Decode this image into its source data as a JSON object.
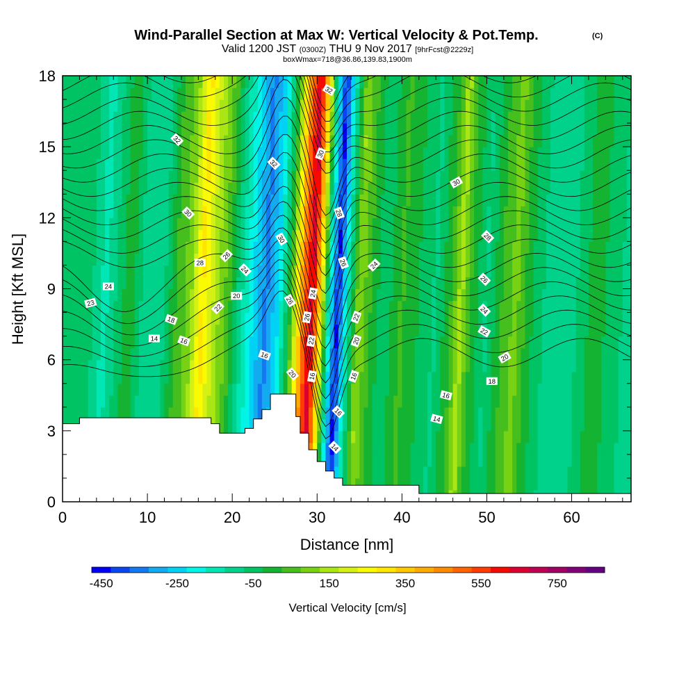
{
  "header": {
    "title": "Wind-Parallel Section at Max W: Vertical Velocity & Pot.Temp.",
    "copyright": "(C)",
    "subtitle_valid": "Valid 1200 JST",
    "subtitle_utc": "(0300Z)",
    "subtitle_date": "THU 9 Nov 2017",
    "subtitle_fcst": "[9hrFcst@2229z]",
    "subtitle_box": "boxWmax=718@36.86,139.83,1900m"
  },
  "chart_data": {
    "type": "heatmap",
    "xlabel": "Distance [nm]",
    "ylabel": "Height [Kft MSL]",
    "xlim": [
      0,
      67
    ],
    "ylim": [
      0,
      18
    ],
    "x_ticks": [
      0,
      10,
      20,
      30,
      40,
      50,
      60
    ],
    "y_ticks": [
      0,
      3,
      6,
      9,
      12,
      15,
      18
    ],
    "colorbar": {
      "label": "Vertical Velocity [cm/s]",
      "min": -450,
      "step": 50,
      "tick_labels": [
        "-450",
        "-250",
        "-50",
        "150",
        "350",
        "550",
        "750"
      ],
      "colors": [
        "#0000f5",
        "#0a46f0",
        "#1478f0",
        "#14aaf0",
        "#00d2f5",
        "#00f5e6",
        "#00e6b4",
        "#00d28c",
        "#00c364",
        "#14b432",
        "#46be1e",
        "#78d214",
        "#aae614",
        "#d7f014",
        "#fafa00",
        "#ffe600",
        "#ffc800",
        "#ffaa00",
        "#ff8c00",
        "#ff6400",
        "#ff3c00",
        "#f50a00",
        "#dc0032",
        "#be0050",
        "#a00064",
        "#820078",
        "#640082"
      ]
    },
    "w_field_columns": [
      {
        "x": 0,
        "w": -50
      },
      {
        "x": 3,
        "w": -20
      },
      {
        "x": 5,
        "w": -120
      },
      {
        "x": 8,
        "w": 40
      },
      {
        "x": 10,
        "w": -100
      },
      {
        "x": 12,
        "w": -60
      },
      {
        "x": 13.5,
        "w": 60
      },
      {
        "x": 15,
        "w": 120
      },
      {
        "x": 16.5,
        "w": 320
      },
      {
        "x": 18,
        "w": 180
      },
      {
        "x": 19.5,
        "w": 80
      },
      {
        "x": 21,
        "w": -80
      },
      {
        "x": 22.5,
        "w": -200
      },
      {
        "x": 24,
        "w": -320
      },
      {
        "x": 25.5,
        "w": -200
      },
      {
        "x": 27,
        "w": 60
      },
      {
        "x": 28.5,
        "w": 500
      },
      {
        "x": 29.5,
        "w": 700
      },
      {
        "x": 30.5,
        "w": 300
      },
      {
        "x": 31.5,
        "w": -150
      },
      {
        "x": 32.5,
        "w": -420
      },
      {
        "x": 33.5,
        "w": -150
      },
      {
        "x": 35,
        "w": 150
      },
      {
        "x": 36.5,
        "w": 40
      },
      {
        "x": 38,
        "w": -40
      },
      {
        "x": 40,
        "w": 60
      },
      {
        "x": 42,
        "w": 0
      },
      {
        "x": 44,
        "w": -60
      },
      {
        "x": 46,
        "w": 60
      },
      {
        "x": 47,
        "w": 180
      },
      {
        "x": 48,
        "w": 60
      },
      {
        "x": 50,
        "w": -60
      },
      {
        "x": 52,
        "w": 60
      },
      {
        "x": 53.5,
        "w": 120
      },
      {
        "x": 55,
        "w": 20
      },
      {
        "x": 57,
        "w": -60
      },
      {
        "x": 59,
        "w": -100
      },
      {
        "x": 61,
        "w": -40
      },
      {
        "x": 63,
        "w": 40
      },
      {
        "x": 65,
        "w": -40
      },
      {
        "x": 67,
        "w": -60
      }
    ],
    "terrain": [
      [
        0,
        3.3
      ],
      [
        2,
        3.3
      ],
      [
        2,
        3.55
      ],
      [
        17.5,
        3.55
      ],
      [
        17.5,
        3.3
      ],
      [
        18.5,
        3.3
      ],
      [
        18.5,
        2.9
      ],
      [
        21.5,
        2.9
      ],
      [
        21.5,
        3.1
      ],
      [
        22.5,
        3.1
      ],
      [
        22.5,
        3.5
      ],
      [
        23.5,
        3.5
      ],
      [
        23.5,
        3.9
      ],
      [
        24.5,
        3.9
      ],
      [
        24.5,
        4.55
      ],
      [
        27.5,
        4.55
      ],
      [
        27.5,
        3.6
      ],
      [
        28,
        3.6
      ],
      [
        28,
        2.9
      ],
      [
        29,
        2.9
      ],
      [
        29,
        2.2
      ],
      [
        30,
        2.2
      ],
      [
        30,
        1.7
      ],
      [
        31,
        1.7
      ],
      [
        31,
        1.3
      ],
      [
        32,
        1.3
      ],
      [
        32,
        1.0
      ],
      [
        33,
        1.0
      ],
      [
        33,
        0.7
      ],
      [
        42,
        0.7
      ],
      [
        42,
        0.35
      ],
      [
        67,
        0.35
      ]
    ],
    "theta_lines": [
      14,
      15,
      16,
      17,
      18,
      19,
      20,
      21,
      22,
      23,
      24,
      25,
      26,
      27,
      28,
      29,
      30,
      31,
      32,
      33,
      34,
      35
    ],
    "theta_labels": [
      {
        "text": "32",
        "x": 13.5,
        "y": 15.3,
        "rot": 45
      },
      {
        "text": "30",
        "x": 14.8,
        "y": 12.2,
        "rot": 45
      },
      {
        "text": "28",
        "x": 16.2,
        "y": 10.1,
        "rot": 0
      },
      {
        "text": "26",
        "x": 19.3,
        "y": 10.4,
        "rot": -45
      },
      {
        "text": "24",
        "x": 21.5,
        "y": 9.8,
        "rot": 45
      },
      {
        "text": "24",
        "x": 5.4,
        "y": 9.1,
        "rot": 0
      },
      {
        "text": "23",
        "x": 3.3,
        "y": 8.4,
        "rot": -15
      },
      {
        "text": "22",
        "x": 18.3,
        "y": 8.2,
        "rot": -45
      },
      {
        "text": "20",
        "x": 20.5,
        "y": 8.7,
        "rot": 0
      },
      {
        "text": "18",
        "x": 12.8,
        "y": 7.7,
        "rot": 20
      },
      {
        "text": "16",
        "x": 14.3,
        "y": 6.8,
        "rot": 20
      },
      {
        "text": "14",
        "x": 10.8,
        "y": 6.9,
        "rot": 0
      },
      {
        "text": "16",
        "x": 23.8,
        "y": 6.2,
        "rot": 20
      },
      {
        "text": "32",
        "x": 24.9,
        "y": 14.3,
        "rot": 45
      },
      {
        "text": "30",
        "x": 25.8,
        "y": 11.1,
        "rot": 60
      },
      {
        "text": "26",
        "x": 26.8,
        "y": 8.5,
        "rot": 60
      },
      {
        "text": "20",
        "x": 27.1,
        "y": 5.4,
        "rot": 50
      },
      {
        "text": "32",
        "x": 31.4,
        "y": 17.4,
        "rot": 30
      },
      {
        "text": "30",
        "x": 30.4,
        "y": 14.7,
        "rot": -70
      },
      {
        "text": "28",
        "x": 32.6,
        "y": 12.2,
        "rot": 70
      },
      {
        "text": "24",
        "x": 29.5,
        "y": 8.8,
        "rot": -80
      },
      {
        "text": "26",
        "x": 28.8,
        "y": 7.8,
        "rot": -80
      },
      {
        "text": "22",
        "x": 29.3,
        "y": 6.8,
        "rot": -80
      },
      {
        "text": "16",
        "x": 29.4,
        "y": 5.3,
        "rot": -80
      },
      {
        "text": "26",
        "x": 33.1,
        "y": 10.1,
        "rot": 70
      },
      {
        "text": "22",
        "x": 34.6,
        "y": 7.8,
        "rot": -70
      },
      {
        "text": "20",
        "x": 34.6,
        "y": 6.8,
        "rot": -70
      },
      {
        "text": "16",
        "x": 34.3,
        "y": 5.3,
        "rot": -70
      },
      {
        "text": "16",
        "x": 32.5,
        "y": 3.8,
        "rot": 45
      },
      {
        "text": "14",
        "x": 32.1,
        "y": 2.3,
        "rot": 45
      },
      {
        "text": "24",
        "x": 36.7,
        "y": 10.0,
        "rot": -45
      },
      {
        "text": "30",
        "x": 46.4,
        "y": 13.5,
        "rot": -30
      },
      {
        "text": "28",
        "x": 50.1,
        "y": 11.2,
        "rot": 45
      },
      {
        "text": "26",
        "x": 49.7,
        "y": 9.4,
        "rot": 45
      },
      {
        "text": "24",
        "x": 49.7,
        "y": 8.1,
        "rot": 45
      },
      {
        "text": "22",
        "x": 49.7,
        "y": 7.2,
        "rot": 30
      },
      {
        "text": "20",
        "x": 52.1,
        "y": 6.1,
        "rot": -30
      },
      {
        "text": "18",
        "x": 50.6,
        "y": 5.1,
        "rot": 0
      },
      {
        "text": "16",
        "x": 45.2,
        "y": 4.5,
        "rot": 15
      },
      {
        "text": "14",
        "x": 44.1,
        "y": 3.5,
        "rot": 15
      }
    ]
  }
}
